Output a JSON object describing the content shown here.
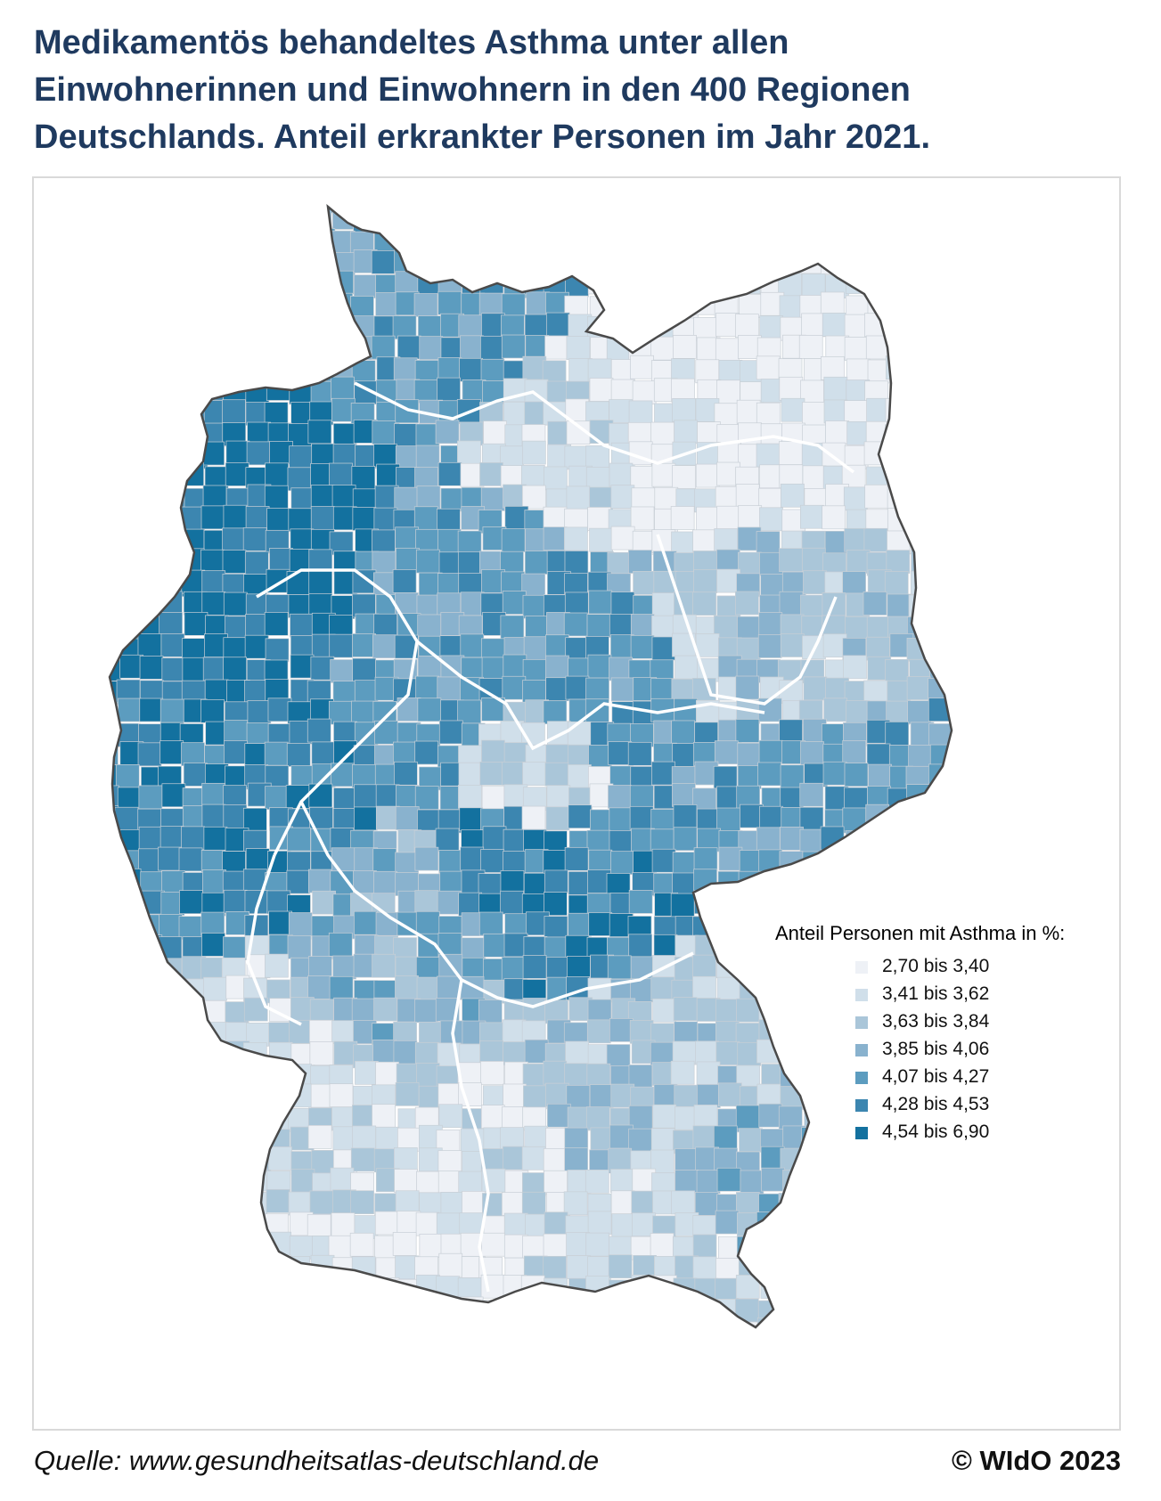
{
  "title_lines": [
    "Medikamentös behandeltes Asthma unter allen",
    "Einwohnerinnen und Einwohnern in den 400 Regionen",
    "Deutschlands. Anteil erkrankter Personen im Jahr 2021."
  ],
  "legend": {
    "title": "Anteil Personen mit Asthma in %:",
    "items": [
      {
        "label": "2,70 bis 3,40",
        "color": "#eef1f6"
      },
      {
        "label": "3,41 bis 3,62",
        "color": "#d0dfea"
      },
      {
        "label": "3,63 bis 3,84",
        "color": "#aac6d9"
      },
      {
        "label": "3,85 bis 4,06",
        "color": "#89b2ce"
      },
      {
        "label": "4,07 bis 4,27",
        "color": "#5c9cbf"
      },
      {
        "label": "4,28 bis 4,53",
        "color": "#3c86b0"
      },
      {
        "label": "4,54 bis 6,90",
        "color": "#13719f"
      }
    ]
  },
  "source": "Quelle: www.gesundheitsatlas-deutschland.de",
  "copyright": "© WIdO 2023"
}
